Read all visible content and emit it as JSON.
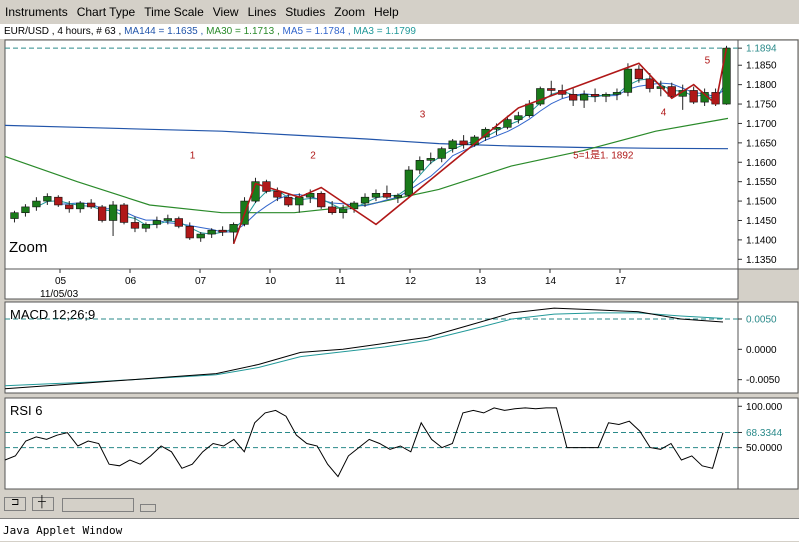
{
  "menu": [
    "Instruments",
    "Chart Type",
    "Time Scale",
    "View",
    "Lines",
    "Studies",
    "Zoom",
    "Help"
  ],
  "info": {
    "instrument": "EUR/USD , 4 hours, # 63 ,",
    "ma144": "MA144 = 1.1635 ,",
    "ma30": "MA30 = 1.1713 ,",
    "ma5": "MA5 = 1.1784 ,",
    "ma3": "MA3 = 1.1799"
  },
  "zoom_label": "Zoom",
  "status_text": "Java Applet Window",
  "colors": {
    "bull": "#1a7a1a",
    "bear": "#b01818",
    "wave": "#b01818",
    "ma144": "#2255aa",
    "ma30": "#2a8a2a",
    "ma5": "#3366cc",
    "ma3": "#229999",
    "dash": "#2a8a8a"
  },
  "chart_data": [
    {
      "type": "candlestick",
      "title": "EUR/USD , 4 hours, # 63",
      "x_ticks": [
        "05",
        "06",
        "07",
        "10",
        "11",
        "12",
        "13",
        "14",
        "17"
      ],
      "x_subtick": "11/05/03",
      "y_ticks": [
        "1.1894",
        "1.1850",
        "1.1800",
        "1.1750",
        "1.1700",
        "1.1650",
        "1.1600",
        "1.1550",
        "1.1500",
        "1.1450",
        "1.1400",
        "1.1350"
      ],
      "ylim": [
        1.1325,
        1.1915
      ],
      "current_price": 1.1894,
      "candles": [
        [
          1.1455,
          1.1475,
          1.1445,
          1.147
        ],
        [
          1.147,
          1.1492,
          1.146,
          1.1485
        ],
        [
          1.1485,
          1.151,
          1.1475,
          1.15
        ],
        [
          1.15,
          1.152,
          1.149,
          1.1512
        ],
        [
          1.151,
          1.1515,
          1.1485,
          1.149
        ],
        [
          1.149,
          1.15,
          1.147,
          1.148
        ],
        [
          1.148,
          1.15,
          1.147,
          1.1495
        ],
        [
          1.1495,
          1.1505,
          1.148,
          1.1485
        ],
        [
          1.1485,
          1.149,
          1.1445,
          1.145
        ],
        [
          1.145,
          1.15,
          1.141,
          1.149
        ],
        [
          1.149,
          1.1495,
          1.144,
          1.1445
        ],
        [
          1.1445,
          1.146,
          1.142,
          1.143
        ],
        [
          1.143,
          1.1445,
          1.142,
          1.144
        ],
        [
          1.144,
          1.146,
          1.143,
          1.145
        ],
        [
          1.145,
          1.1465,
          1.144,
          1.1455
        ],
        [
          1.1455,
          1.146,
          1.143,
          1.1435
        ],
        [
          1.1435,
          1.1445,
          1.14,
          1.1405
        ],
        [
          1.1405,
          1.142,
          1.1395,
          1.1415
        ],
        [
          1.1415,
          1.143,
          1.1405,
          1.1425
        ],
        [
          1.1425,
          1.1435,
          1.141,
          1.142
        ],
        [
          1.142,
          1.1445,
          1.139,
          1.144
        ],
        [
          1.144,
          1.151,
          1.1435,
          1.15
        ],
        [
          1.15,
          1.156,
          1.1495,
          1.155
        ],
        [
          1.155,
          1.1555,
          1.152,
          1.1525
        ],
        [
          1.1525,
          1.1535,
          1.15,
          1.151
        ],
        [
          1.151,
          1.152,
          1.1485,
          1.149
        ],
        [
          1.149,
          1.152,
          1.147,
          1.151
        ],
        [
          1.151,
          1.153,
          1.1495,
          1.152
        ],
        [
          1.152,
          1.1525,
          1.148,
          1.1485
        ],
        [
          1.1485,
          1.15,
          1.1465,
          1.147
        ],
        [
          1.147,
          1.149,
          1.1455,
          1.148
        ],
        [
          1.148,
          1.15,
          1.147,
          1.1495
        ],
        [
          1.1495,
          1.152,
          1.1485,
          1.151
        ],
        [
          1.151,
          1.153,
          1.15,
          1.152
        ],
        [
          1.152,
          1.154,
          1.1505,
          1.151
        ],
        [
          1.151,
          1.152,
          1.1495,
          1.1515
        ],
        [
          1.1515,
          1.159,
          1.151,
          1.158
        ],
        [
          1.158,
          1.1615,
          1.157,
          1.1605
        ],
        [
          1.1605,
          1.1625,
          1.1595,
          1.161
        ],
        [
          1.161,
          1.164,
          1.16,
          1.1635
        ],
        [
          1.1635,
          1.166,
          1.1625,
          1.1655
        ],
        [
          1.1655,
          1.167,
          1.1635,
          1.1645
        ],
        [
          1.1645,
          1.167,
          1.164,
          1.1665
        ],
        [
          1.1665,
          1.169,
          1.1655,
          1.1685
        ],
        [
          1.1685,
          1.17,
          1.167,
          1.169
        ],
        [
          1.169,
          1.172,
          1.1685,
          1.171
        ],
        [
          1.171,
          1.173,
          1.17,
          1.172
        ],
        [
          1.172,
          1.176,
          1.1715,
          1.175
        ],
        [
          1.175,
          1.1795,
          1.1745,
          1.179
        ],
        [
          1.179,
          1.181,
          1.177,
          1.1785
        ],
        [
          1.1785,
          1.18,
          1.1765,
          1.1775
        ],
        [
          1.1775,
          1.179,
          1.1745,
          1.176
        ],
        [
          1.176,
          1.1785,
          1.174,
          1.1775
        ],
        [
          1.1775,
          1.179,
          1.1755,
          1.177
        ],
        [
          1.177,
          1.178,
          1.1755,
          1.1775
        ],
        [
          1.1775,
          1.179,
          1.176,
          1.178
        ],
        [
          1.178,
          1.1855,
          1.177,
          1.184
        ],
        [
          1.184,
          1.185,
          1.1805,
          1.1815
        ],
        [
          1.1815,
          1.183,
          1.178,
          1.179
        ],
        [
          1.179,
          1.181,
          1.177,
          1.1795
        ],
        [
          1.1795,
          1.1805,
          1.1765,
          1.177
        ],
        [
          1.177,
          1.18,
          1.1735,
          1.1785
        ],
        [
          1.1785,
          1.1795,
          1.175,
          1.1755
        ],
        [
          1.1755,
          1.179,
          1.1745,
          1.178
        ],
        [
          1.178,
          1.179,
          1.1745,
          1.175
        ],
        [
          1.175,
          1.19,
          1.1748,
          1.1894
        ]
      ],
      "ma144": [
        1.1695,
        1.169,
        1.1685,
        1.168,
        1.167,
        1.166,
        1.1648,
        1.1642,
        1.1638,
        1.1636,
        1.1635
      ],
      "ma30": [
        1.1615,
        1.155,
        1.149,
        1.147,
        1.147,
        1.149,
        1.153,
        1.159,
        1.163,
        1.168,
        1.1713
      ],
      "waves": [
        {
          "x": 20,
          "y": 1.139
        },
        {
          "x": 22,
          "y": 1.1545
        },
        {
          "x": 26,
          "y": 1.151
        },
        {
          "x": 28,
          "y": 1.1535
        },
        {
          "x": 33,
          "y": 1.144
        },
        {
          "x": 46,
          "y": 1.174
        },
        {
          "x": 57,
          "y": 1.1855
        },
        {
          "x": 60,
          "y": 1.1765
        },
        {
          "x": 62,
          "y": 1.18
        },
        {
          "x": 64,
          "y": 1.175
        },
        {
          "x": 65,
          "y": 1.1894
        }
      ],
      "labels": [
        {
          "text": "1",
          "x": 16,
          "y": 1.161
        },
        {
          "text": "2",
          "x": 27,
          "y": 1.161
        },
        {
          "text": "3",
          "x": 37,
          "y": 1.1715
        },
        {
          "text": "4",
          "x": 59,
          "y": 1.172
        },
        {
          "text": "5",
          "x": 63,
          "y": 1.1855
        },
        {
          "text": "5=1是1. 1892",
          "x": 51,
          "y": 1.161
        }
      ]
    },
    {
      "type": "line",
      "title": "MACD 12;26;9",
      "y_ticks": [
        "0.0050",
        "0.0000",
        "-0.0050"
      ],
      "ylim": [
        -0.0072,
        0.0078
      ],
      "current": 0.005,
      "macd": [
        -0.0065,
        -0.006,
        -0.0055,
        -0.005,
        -0.0045,
        -0.004,
        -0.0025,
        -0.0005,
        0.0,
        0.001,
        0.002,
        0.004,
        0.006,
        0.0068,
        0.0065,
        0.0062,
        0.005,
        0.0045
      ],
      "signal": [
        -0.006,
        -0.0057,
        -0.0054,
        -0.005,
        -0.0046,
        -0.0042,
        -0.003,
        -0.0012,
        -0.0004,
        0.0004,
        0.0015,
        0.0032,
        0.005,
        0.0058,
        0.006,
        0.006,
        0.0055,
        0.0051
      ]
    },
    {
      "type": "line",
      "title": "RSI 6",
      "y_ticks": [
        "100.000",
        "68.3344",
        "50.0000"
      ],
      "ylim": [
        0,
        110
      ],
      "current": 68.3344,
      "rsi": [
        35,
        40,
        58,
        63,
        60,
        65,
        68,
        52,
        58,
        55,
        30,
        28,
        35,
        30,
        40,
        52,
        45,
        25,
        30,
        45,
        55,
        52,
        60,
        45,
        80,
        92,
        95,
        88,
        65,
        55,
        52,
        30,
        15,
        40,
        50,
        60,
        55,
        48,
        52,
        45,
        80,
        60,
        50,
        55,
        92,
        95,
        92,
        98,
        95,
        97,
        98,
        97,
        98,
        98,
        50,
        50,
        50,
        50,
        80,
        78,
        82,
        70,
        50,
        48,
        55,
        35,
        40,
        28,
        25,
        68
      ]
    }
  ]
}
